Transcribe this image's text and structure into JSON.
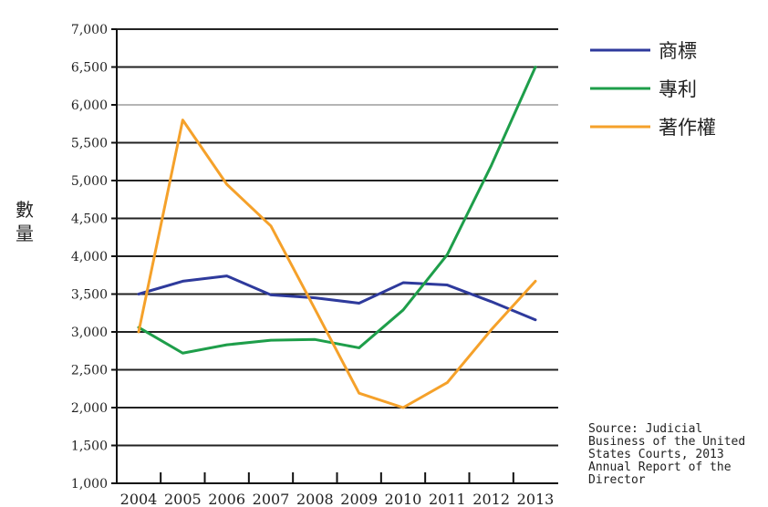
{
  "chart_data": {
    "type": "line",
    "title": "",
    "xlabel": "",
    "ylabel_chars": [
      "數",
      "量"
    ],
    "categories": [
      "2004",
      "2005",
      "2006",
      "2007",
      "2008",
      "2009",
      "2010",
      "2011",
      "2012",
      "2013"
    ],
    "ylim": [
      1000,
      7000
    ],
    "yticks": [
      1000,
      1500,
      2000,
      2500,
      3000,
      3500,
      4000,
      4500,
      5000,
      5500,
      6000,
      6500,
      7000
    ],
    "ytick_labels": [
      "1,000",
      "1,500",
      "2,000",
      "2,500",
      "3,000",
      "3,500",
      "4,000",
      "4,500",
      "5,000",
      "5,500",
      "6,000",
      "6,500",
      "7,000"
    ],
    "grid": true,
    "legend_position": "top-right",
    "series": [
      {
        "name": "商標",
        "color": "#2e3a9c",
        "values": [
          3500,
          3670,
          3740,
          3490,
          3450,
          3380,
          3650,
          3620,
          3400,
          3160
        ]
      },
      {
        "name": "專利",
        "color": "#1e9e4a",
        "values": [
          3060,
          2720,
          2830,
          2890,
          2900,
          2790,
          3290,
          4020,
          5200,
          6500
        ]
      },
      {
        "name": "著作權",
        "color": "#f5a12a",
        "values": [
          3000,
          5800,
          4950,
          4400,
          3300,
          2190,
          2000,
          2330,
          3030,
          3670
        ]
      }
    ],
    "annotation": "Source: Judicial\nBusiness of the United\nStates Courts, 2013\nAnnual Report of the\nDirector"
  }
}
